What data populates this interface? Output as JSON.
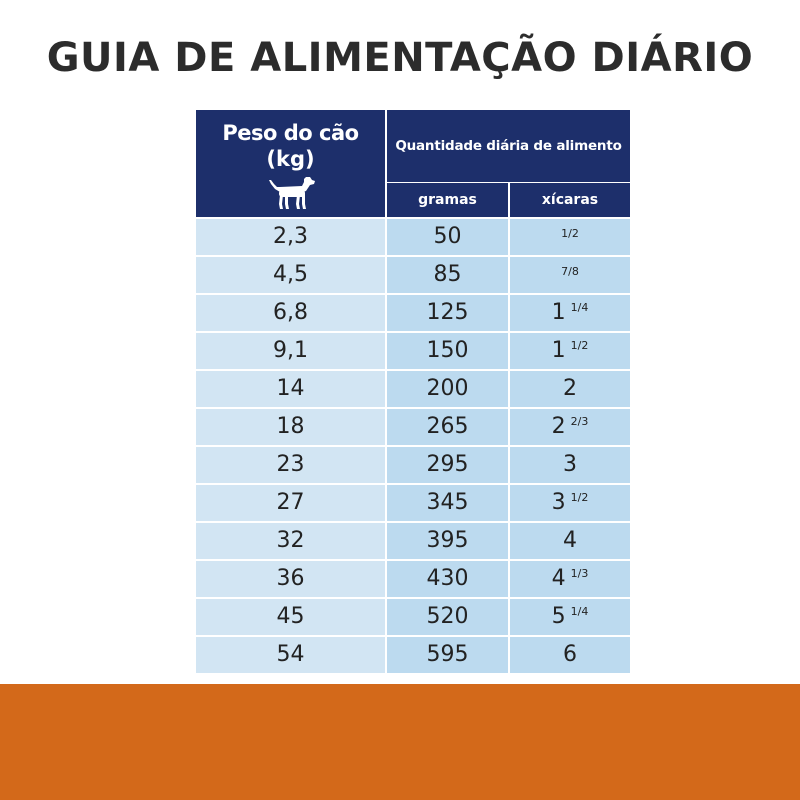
{
  "title": "GUIA DE ALIMENTAÇÃO DIÁRIO",
  "colors": {
    "header_bg": "#1d2f6b",
    "weight_col_bg": "#d2e5f3",
    "amount_col_bg": "#bcdaef",
    "bottom_band": "#d3691a",
    "title_color": "#2c2c2c"
  },
  "table": {
    "header": {
      "weight_label_line1": "Peso do cão",
      "weight_label_line2": "(kg)",
      "weight_icon": "dog-icon",
      "amount_label": "Quantidade diária de alimento",
      "grams_label": "gramas",
      "cups_label": "xícaras"
    },
    "rows": [
      {
        "weight": "2,3",
        "grams": "50",
        "cups_whole": "",
        "cups_frac": "1/2"
      },
      {
        "weight": "4,5",
        "grams": "85",
        "cups_whole": "",
        "cups_frac": "7/8"
      },
      {
        "weight": "6,8",
        "grams": "125",
        "cups_whole": "1",
        "cups_frac": "1/4"
      },
      {
        "weight": "9,1",
        "grams": "150",
        "cups_whole": "1",
        "cups_frac": "1/2"
      },
      {
        "weight": "14",
        "grams": "200",
        "cups_whole": "2",
        "cups_frac": ""
      },
      {
        "weight": "18",
        "grams": "265",
        "cups_whole": "2",
        "cups_frac": "2/3"
      },
      {
        "weight": "23",
        "grams": "295",
        "cups_whole": "3",
        "cups_frac": ""
      },
      {
        "weight": "27",
        "grams": "345",
        "cups_whole": "3",
        "cups_frac": "1/2"
      },
      {
        "weight": "32",
        "grams": "395",
        "cups_whole": "4",
        "cups_frac": ""
      },
      {
        "weight": "36",
        "grams": "430",
        "cups_whole": "4",
        "cups_frac": "1/3"
      },
      {
        "weight": "45",
        "grams": "520",
        "cups_whole": "5",
        "cups_frac": "1/4"
      },
      {
        "weight": "54",
        "grams": "595",
        "cups_whole": "6",
        "cups_frac": ""
      }
    ]
  }
}
